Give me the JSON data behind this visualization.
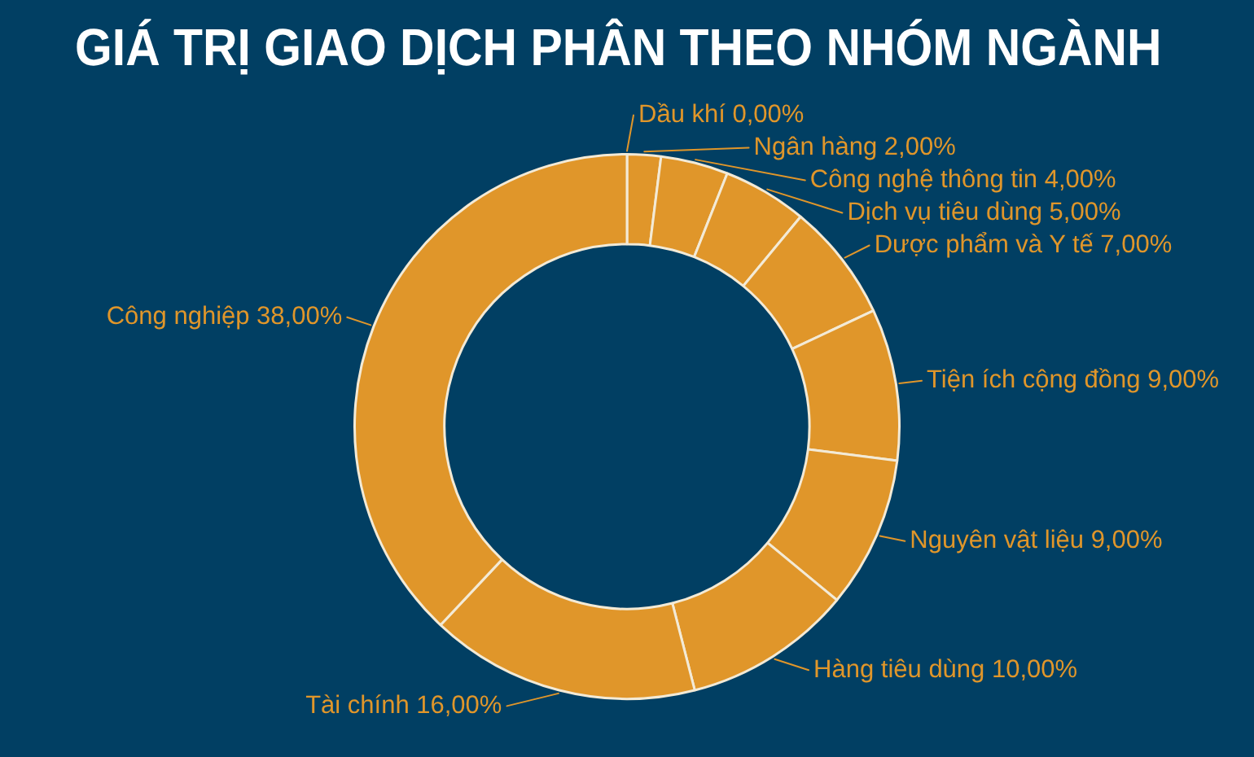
{
  "chart_data": {
    "type": "donut",
    "title": "GIÁ TRỊ GIAO DỊCH PHÂN THEO NHÓM NGÀNH",
    "categories": [
      "Dầu khí",
      "Ngân hàng",
      "Công nghệ thông tin",
      "Dịch vụ tiêu dùng",
      "Dược phẩm và Y tế",
      "Tiện ích cộng đồng",
      "Nguyên vật liệu",
      "Hàng tiêu dùng",
      "Tài chính",
      "Công nghiệp"
    ],
    "values": [
      0,
      2,
      4,
      5,
      7,
      9,
      9,
      10,
      16,
      38
    ],
    "colors": [
      "#e0962a",
      "#e0962a",
      "#e0962a",
      "#e0962a",
      "#e0962a",
      "#e0962a",
      "#e0962a",
      "#e0962a",
      "#e0962a",
      "#e0962a"
    ],
    "value_labels": [
      "0,00%",
      "2,00%",
      "4,00%",
      "5,00%",
      "7,00%",
      "9,00%",
      "9,00%",
      "10,00%",
      "16,00%",
      "38,00%"
    ]
  }
}
